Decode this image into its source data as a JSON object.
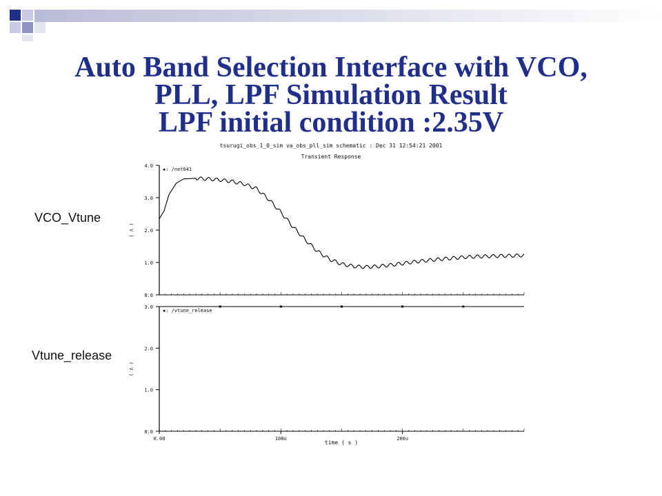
{
  "slide": {
    "title_lines": [
      "Auto Band Selection Interface with VCO,",
      "PLL, LPF Simulation Result",
      "LPF initial condition :2.35V"
    ],
    "accent_color": "#1f2f8a"
  },
  "side_labels": {
    "top": "VCO_Vtune",
    "bottom": "Vtune_release"
  },
  "chart_data": {
    "type": "line",
    "header": "tsurugi_obs_1_0_sim va_obs_pll_sim schematic : Dec 31 12:54:21 2001",
    "subtitle": "Transient Response",
    "xlabel": "time ( s )",
    "x_ticks": [
      "0.00",
      "100u",
      "200u"
    ],
    "x_range": [
      0,
      0.0003
    ],
    "panels": [
      {
        "name": "/net041",
        "ylabel": "( V )",
        "y_ticks": [
          "0.0",
          "1.0",
          "2.0",
          "3.0",
          "4.0"
        ],
        "y_range": [
          0,
          4
        ],
        "points": [
          [
            0,
            2.35
          ],
          [
            4e-06,
            2.6
          ],
          [
            8e-06,
            3.1
          ],
          [
            1.4e-05,
            3.45
          ],
          [
            2e-05,
            3.58
          ],
          [
            3e-05,
            3.6
          ],
          [
            4e-05,
            3.58
          ],
          [
            5e-05,
            3.55
          ],
          [
            6e-05,
            3.5
          ],
          [
            7e-05,
            3.42
          ],
          [
            8e-05,
            3.28
          ],
          [
            9e-05,
            2.95
          ],
          [
            0.0001,
            2.55
          ],
          [
            0.00011,
            2.1
          ],
          [
            0.00012,
            1.7
          ],
          [
            0.00013,
            1.35
          ],
          [
            0.00014,
            1.1
          ],
          [
            0.00015,
            0.95
          ],
          [
            0.00016,
            0.88
          ],
          [
            0.00017,
            0.86
          ],
          [
            0.00018,
            0.88
          ],
          [
            0.00019,
            0.92
          ],
          [
            0.0002,
            0.97
          ],
          [
            0.00021,
            1.02
          ],
          [
            0.00022,
            1.06
          ],
          [
            0.00023,
            1.1
          ],
          [
            0.00024,
            1.13
          ],
          [
            0.00025,
            1.16
          ],
          [
            0.00026,
            1.18
          ],
          [
            0.00027,
            1.19
          ],
          [
            0.00028,
            1.2
          ],
          [
            0.00029,
            1.21
          ],
          [
            0.0003,
            1.22
          ]
        ],
        "ripple_amplitude": 0.05
      },
      {
        "name": "/vtune_release",
        "ylabel": "( V )",
        "y_ticks": [
          "0.0",
          "1.0",
          "2.0",
          "3.0"
        ],
        "y_range": [
          0,
          3
        ],
        "points": [
          [
            0,
            3.0
          ],
          [
            0.0003,
            3.0
          ]
        ],
        "markers": [
          5e-05,
          0.0001,
          0.00015,
          0.0002,
          0.00025
        ]
      }
    ]
  }
}
